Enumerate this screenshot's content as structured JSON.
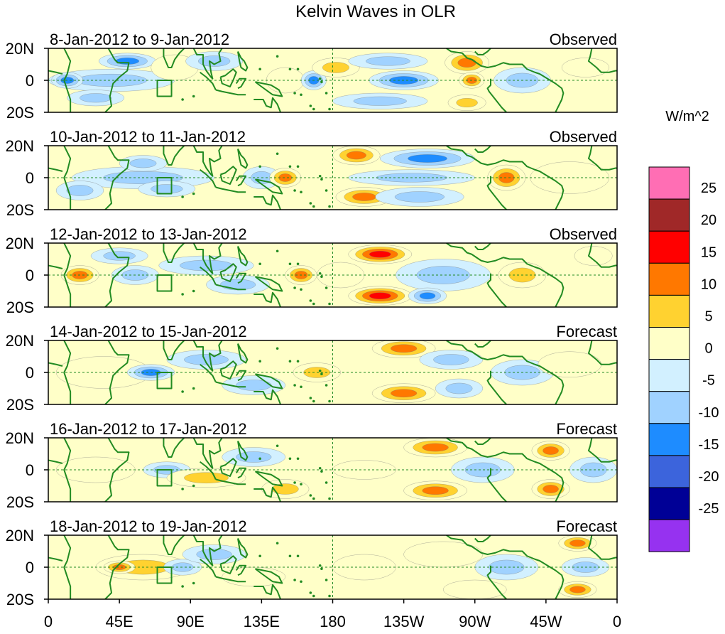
{
  "chart_data": {
    "type": "heatmap",
    "title": "Kelvin Waves in OLR",
    "units": "W/m^2",
    "x_ticks": [
      "0",
      "45E",
      "90E",
      "135E",
      "180",
      "135W",
      "90W",
      "45W",
      "0"
    ],
    "y_ticks": [
      "20N",
      "0",
      "20S"
    ],
    "colorbar": {
      "labels": [
        "25",
        "20",
        "15",
        "10",
        "5",
        "0",
        "-5",
        "-10",
        "-15",
        "-20",
        "-25"
      ],
      "colors": [
        "#ff6eb4",
        "#a02828",
        "#ff0000",
        "#ff7800",
        "#ffd230",
        "#ffffc8",
        "#d2f0ff",
        "#a0d2ff",
        "#1e8cff",
        "#3c64dc",
        "#000096",
        "#9632f0"
      ]
    },
    "panels": [
      {
        "period": "8-Jan-2012 to 9-Jan-2012",
        "status": "Observed",
        "blobs": [
          {
            "lon": 40,
            "lat": 0,
            "dlon": 40,
            "dlat": 7,
            "v": -6
          },
          {
            "lon": 50,
            "lat": 12,
            "dlon": 18,
            "dlat": 5,
            "v": -12
          },
          {
            "lon": 30,
            "lat": -11,
            "dlon": 18,
            "dlat": 5,
            "v": -8
          },
          {
            "lon": 12,
            "lat": 0,
            "dlon": 10,
            "dlat": 5,
            "v": -12
          },
          {
            "lon": 80,
            "lat": 8,
            "dlon": 15,
            "dlat": 8,
            "v": 5
          },
          {
            "lon": 105,
            "lat": 12,
            "dlon": 18,
            "dlat": 6,
            "v": -7
          },
          {
            "lon": 150,
            "lat": 0,
            "dlon": 12,
            "dlat": 8,
            "v": 5
          },
          {
            "lon": 168,
            "lat": 0,
            "dlon": 8,
            "dlat": 6,
            "v": -11
          },
          {
            "lon": 182,
            "lat": 8,
            "dlon": 15,
            "dlat": 6,
            "v": 7
          },
          {
            "lon": 225,
            "lat": 0,
            "dlon": 22,
            "dlat": 6,
            "v": -13
          },
          {
            "lon": 215,
            "lat": 12,
            "dlon": 25,
            "dlat": 5,
            "v": -8
          },
          {
            "lon": 210,
            "lat": -13,
            "dlon": 30,
            "dlat": 5,
            "v": -10
          },
          {
            "lon": 265,
            "lat": 11,
            "dlon": 14,
            "dlat": 7,
            "v": 13
          },
          {
            "lon": 268,
            "lat": 0,
            "dlon": 8,
            "dlat": 5,
            "v": 12
          },
          {
            "lon": 265,
            "lat": -14,
            "dlon": 12,
            "dlat": 5,
            "v": 10
          },
          {
            "lon": 300,
            "lat": 0,
            "dlon": 18,
            "dlat": 8,
            "v": -7
          },
          {
            "lon": 340,
            "lat": 8,
            "dlon": 15,
            "dlat": 6,
            "v": 5
          }
        ]
      },
      {
        "period": "10-Jan-2012 to 11-Jan-2012",
        "status": "Observed",
        "blobs": [
          {
            "lon": 60,
            "lat": 0,
            "dlon": 45,
            "dlat": 7,
            "v": -6
          },
          {
            "lon": 75,
            "lat": -7,
            "dlon": 18,
            "dlat": 5,
            "v": -10
          },
          {
            "lon": 60,
            "lat": 9,
            "dlon": 15,
            "dlat": 5,
            "v": -9
          },
          {
            "lon": 20,
            "lat": -8,
            "dlon": 15,
            "dlat": 6,
            "v": -7
          },
          {
            "lon": 135,
            "lat": 0,
            "dlon": 12,
            "dlat": 7,
            "v": -7
          },
          {
            "lon": 150,
            "lat": 0,
            "dlon": 10,
            "dlat": 6,
            "v": 14
          },
          {
            "lon": 195,
            "lat": 14,
            "dlon": 15,
            "dlat": 6,
            "v": 15
          },
          {
            "lon": 200,
            "lat": -12,
            "dlon": 18,
            "dlat": 6,
            "v": 15
          },
          {
            "lon": 230,
            "lat": 0,
            "dlon": 40,
            "dlat": 5,
            "v": -10
          },
          {
            "lon": 240,
            "lat": 12,
            "dlon": 30,
            "dlat": 6,
            "v": -11
          },
          {
            "lon": 235,
            "lat": -12,
            "dlon": 28,
            "dlat": 6,
            "v": -9
          },
          {
            "lon": 290,
            "lat": 0,
            "dlon": 12,
            "dlat": 8,
            "v": 12
          },
          {
            "lon": 330,
            "lat": 0,
            "dlon": 25,
            "dlat": 10,
            "v": 3
          }
        ]
      },
      {
        "period": "12-Jan-2012 to 13-Jan-2012",
        "status": "Observed",
        "blobs": [
          {
            "lon": 20,
            "lat": 0,
            "dlon": 12,
            "dlat": 6,
            "v": 12
          },
          {
            "lon": 55,
            "lat": 0,
            "dlon": 15,
            "dlat": 6,
            "v": -10
          },
          {
            "lon": 45,
            "lat": 12,
            "dlon": 18,
            "dlat": 5,
            "v": -7
          },
          {
            "lon": 100,
            "lat": 6,
            "dlon": 30,
            "dlat": 6,
            "v": -8
          },
          {
            "lon": 120,
            "lat": -6,
            "dlon": 20,
            "dlat": 6,
            "v": -7
          },
          {
            "lon": 160,
            "lat": 0,
            "dlon": 10,
            "dlat": 6,
            "v": 11
          },
          {
            "lon": 185,
            "lat": 0,
            "dlon": 15,
            "dlat": 8,
            "v": 5
          },
          {
            "lon": 210,
            "lat": 13,
            "dlon": 20,
            "dlat": 6,
            "v": 16
          },
          {
            "lon": 210,
            "lat": -13,
            "dlon": 20,
            "dlat": 6,
            "v": 16
          },
          {
            "lon": 250,
            "lat": 0,
            "dlon": 30,
            "dlat": 10,
            "v": -8
          },
          {
            "lon": 240,
            "lat": -13,
            "dlon": 12,
            "dlat": 5,
            "v": -11
          },
          {
            "lon": 300,
            "lat": 0,
            "dlon": 15,
            "dlat": 8,
            "v": 7
          },
          {
            "lon": 345,
            "lat": 12,
            "dlon": 12,
            "dlat": 6,
            "v": 5
          }
        ]
      },
      {
        "period": "14-Jan-2012 to 15-Jan-2012",
        "status": "Forecast",
        "blobs": [
          {
            "lon": 35,
            "lat": 0,
            "dlon": 30,
            "dlat": 10,
            "v": 4
          },
          {
            "lon": 65,
            "lat": 0,
            "dlon": 15,
            "dlat": 5,
            "v": -11
          },
          {
            "lon": 100,
            "lat": 8,
            "dlon": 25,
            "dlat": 6,
            "v": -7
          },
          {
            "lon": 130,
            "lat": -8,
            "dlon": 20,
            "dlat": 6,
            "v": -6
          },
          {
            "lon": 170,
            "lat": 0,
            "dlon": 15,
            "dlat": 6,
            "v": 6
          },
          {
            "lon": 225,
            "lat": 15,
            "dlon": 20,
            "dlat": 6,
            "v": 14
          },
          {
            "lon": 225,
            "lat": -13,
            "dlon": 20,
            "dlat": 6,
            "v": 15
          },
          {
            "lon": 255,
            "lat": 8,
            "dlon": 20,
            "dlat": 6,
            "v": -10
          },
          {
            "lon": 260,
            "lat": -10,
            "dlon": 15,
            "dlat": 6,
            "v": -9
          },
          {
            "lon": 300,
            "lat": 0,
            "dlon": 20,
            "dlat": 8,
            "v": -6
          },
          {
            "lon": 330,
            "lat": 5,
            "dlon": 20,
            "dlat": 8,
            "v": 3
          }
        ]
      },
      {
        "period": "16-Jan-2012 to 17-Jan-2012",
        "status": "Forecast",
        "blobs": [
          {
            "lon": 30,
            "lat": 0,
            "dlon": 25,
            "dlat": 8,
            "v": 5
          },
          {
            "lon": 75,
            "lat": 0,
            "dlon": 15,
            "dlat": 5,
            "v": -10
          },
          {
            "lon": 100,
            "lat": -5,
            "dlon": 25,
            "dlat": 6,
            "v": 6
          },
          {
            "lon": 130,
            "lat": 8,
            "dlon": 20,
            "dlat": 6,
            "v": -7
          },
          {
            "lon": 150,
            "lat": -12,
            "dlon": 15,
            "dlat": 6,
            "v": 6
          },
          {
            "lon": 200,
            "lat": 0,
            "dlon": 20,
            "dlat": 6,
            "v": 4
          },
          {
            "lon": 245,
            "lat": 14,
            "dlon": 20,
            "dlat": 6,
            "v": 12
          },
          {
            "lon": 245,
            "lat": -13,
            "dlon": 20,
            "dlat": 6,
            "v": 14
          },
          {
            "lon": 275,
            "lat": 0,
            "dlon": 20,
            "dlat": 8,
            "v": -9
          },
          {
            "lon": 318,
            "lat": 12,
            "dlon": 12,
            "dlat": 6,
            "v": 12
          },
          {
            "lon": 318,
            "lat": -12,
            "dlon": 12,
            "dlat": 6,
            "v": 12
          },
          {
            "lon": 345,
            "lat": 0,
            "dlon": 15,
            "dlat": 8,
            "v": -6
          }
        ]
      },
      {
        "period": "18-Jan-2012 to 19-Jan-2012",
        "status": "Forecast",
        "blobs": [
          {
            "lon": 60,
            "lat": 0,
            "dlon": 30,
            "dlat": 8,
            "v": 6
          },
          {
            "lon": 45,
            "lat": 0,
            "dlon": 10,
            "dlat": 4,
            "v": 12
          },
          {
            "lon": 85,
            "lat": 0,
            "dlon": 12,
            "dlat": 5,
            "v": -9
          },
          {
            "lon": 105,
            "lat": 8,
            "dlon": 20,
            "dlat": 6,
            "v": -6
          },
          {
            "lon": 130,
            "lat": -6,
            "dlon": 20,
            "dlat": 6,
            "v": 5
          },
          {
            "lon": 200,
            "lat": 0,
            "dlon": 20,
            "dlat": 8,
            "v": 3
          },
          {
            "lon": 250,
            "lat": 8,
            "dlon": 25,
            "dlat": 8,
            "v": 4
          },
          {
            "lon": 270,
            "lat": -14,
            "dlon": 20,
            "dlat": 6,
            "v": 5
          },
          {
            "lon": 290,
            "lat": 0,
            "dlon": 20,
            "dlat": 8,
            "v": -7
          },
          {
            "lon": 335,
            "lat": 15,
            "dlon": 12,
            "dlat": 5,
            "v": 12
          },
          {
            "lon": 335,
            "lat": -14,
            "dlon": 12,
            "dlat": 5,
            "v": 14
          },
          {
            "lon": 340,
            "lat": 0,
            "dlon": 15,
            "dlat": 6,
            "v": -7
          }
        ]
      }
    ]
  }
}
